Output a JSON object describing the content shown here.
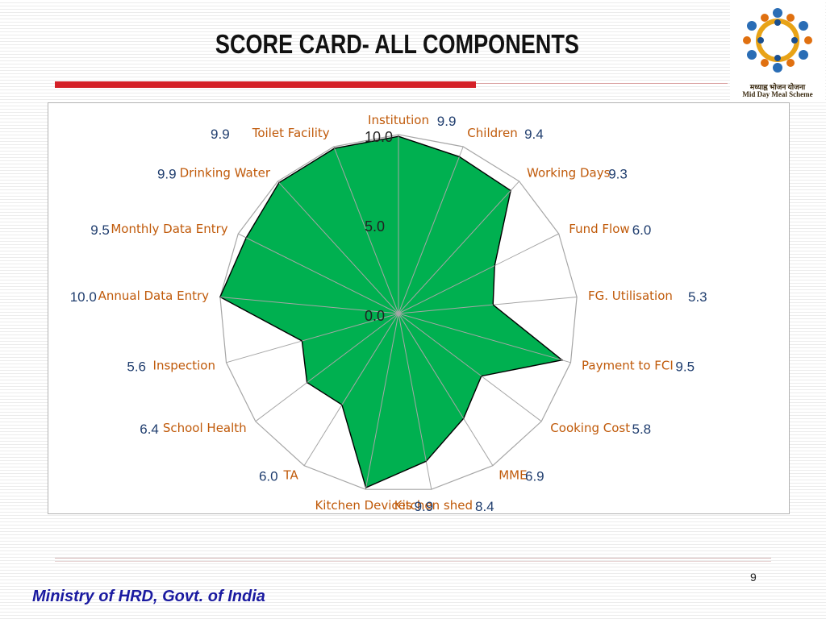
{
  "slide": {
    "title": "SCORE CARD- ALL COMPONENTS",
    "page_number": "9",
    "footer": "Ministry of HRD, Govt. of India",
    "logo": {
      "text_hindi": "मध्याह्न भोजन योजना",
      "text_english": "Mid Day Meal Scheme"
    }
  },
  "colors": {
    "fill": "#00b050",
    "outline": "#000000",
    "grid": "#a6a6a6",
    "category_text": "#c05a0a",
    "value_text": "#1f3d6e",
    "title_bar": "#d42027",
    "footer_text": "#1a1aa0"
  },
  "chart_data": {
    "type": "radar",
    "title": "",
    "range": [
      0,
      10
    ],
    "tick_labels": [
      "0.0",
      "5.0",
      "10.0"
    ],
    "categories": [
      "Institution",
      "Children",
      "Working Days",
      "Fund Flow",
      "FG. Utilisation",
      "Payment to FCI",
      "Cooking Cost",
      "MME",
      "Kitchen shed",
      "Kitchen Devices",
      "TA",
      "School Health",
      "Inspection",
      "Annual Data Entry",
      "Monthly Data Entry",
      "Drinking Water",
      "Toilet Facility"
    ],
    "values": [
      9.9,
      9.4,
      9.3,
      6.0,
      5.3,
      9.5,
      5.8,
      6.9,
      8.4,
      9.9,
      6.0,
      6.4,
      5.6,
      10.0,
      9.5,
      9.9,
      9.9
    ],
    "value_labels": [
      "9.9",
      "9.4",
      "9.3",
      "6.0",
      "5.3",
      "9.5",
      "5.8",
      "6.9",
      "8.4",
      "9.9",
      "6.0",
      "6.4",
      "5.6",
      "10.0",
      "9.5",
      "9.9",
      "9.9"
    ],
    "grid": true,
    "legend": "none"
  }
}
